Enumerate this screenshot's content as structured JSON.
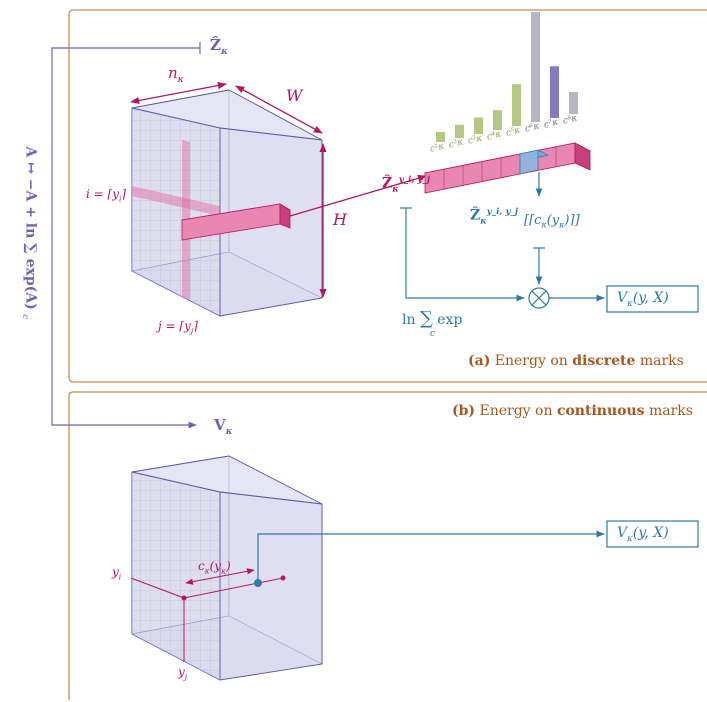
{
  "colors": {
    "panel_border": "#b86b2e",
    "caption": "#a8561c",
    "magenta": "#b4185e",
    "magenta_fill": "#e0649a",
    "blue": "#2f7aa6",
    "purple": "#6e63b3",
    "cube_fill": "#d9d7ec",
    "cube_line": "#5b5aa8",
    "green": "#a6be6a",
    "gray_bar": "#a9a9b9"
  },
  "panel_a": {
    "caption_label": "(a)",
    "caption_text": "Energy on",
    "caption_bold": "discrete",
    "caption_tail": "marks",
    "z_top_label": "Ẑ",
    "z_top_sub": "κ",
    "n_label": "n",
    "n_sub": "κ",
    "w_label": "W",
    "h_label": "H",
    "i_label": "i = ⌈y",
    "i_sub": "i",
    "i_close": "⌉",
    "j_label": "j = ⌈y",
    "j_sub": "j",
    "j_close": "⌉",
    "zyi_label": "Ẑ",
    "zyi_sub": "κ",
    "zyi_sup": "y_i, y_j",
    "zyij_label": "Ẑ",
    "zyij_sub": "κ",
    "zyij_sup": "y_i, y_j",
    "ceil_label": "[⌈c",
    "ceil_sub": "κ",
    "ceil_tail": "(y",
    "ceil_tail_sub": "κ",
    "ceil_close": ")⌉]",
    "lse_ln": "ln",
    "lse_sum": "∑",
    "lse_c": "c",
    "lse_exp": "exp",
    "otimes": "⊗",
    "output_label": "V",
    "output_sub": "κ",
    "output_args": "(y, X)",
    "c_labels": [
      "c¹",
      "c²",
      "c³",
      "c⁴",
      "c⁵",
      "c⁶",
      "c⁷",
      "c⁸"
    ],
    "c_sub": "κ"
  },
  "panel_b": {
    "caption_label": "(b)",
    "caption_text": "Energy on",
    "caption_bold": "continuous",
    "caption_tail": "marks",
    "v_label": "V",
    "v_sub": "κ",
    "yi_label": "y",
    "yi_sub": "i",
    "yj_label": "y",
    "yj_sub": "j",
    "c_label": "c",
    "c_sub": "κ",
    "c_args": "(y",
    "c_args_sub": "κ",
    "c_close": ")",
    "output_label": "V",
    "output_sub": "κ",
    "output_args": "(y, X)"
  },
  "side_label": "A ↦ −A + ln ∑ exp(A)",
  "side_sub": "c",
  "histogram": {
    "values": [
      0.09,
      0.12,
      0.15,
      0.18,
      0.38,
      1.0,
      0.47,
      0.2
    ],
    "colors": [
      "green",
      "green",
      "green",
      "green",
      "green",
      "gray_bar",
      "purple",
      "gray_bar"
    ]
  }
}
